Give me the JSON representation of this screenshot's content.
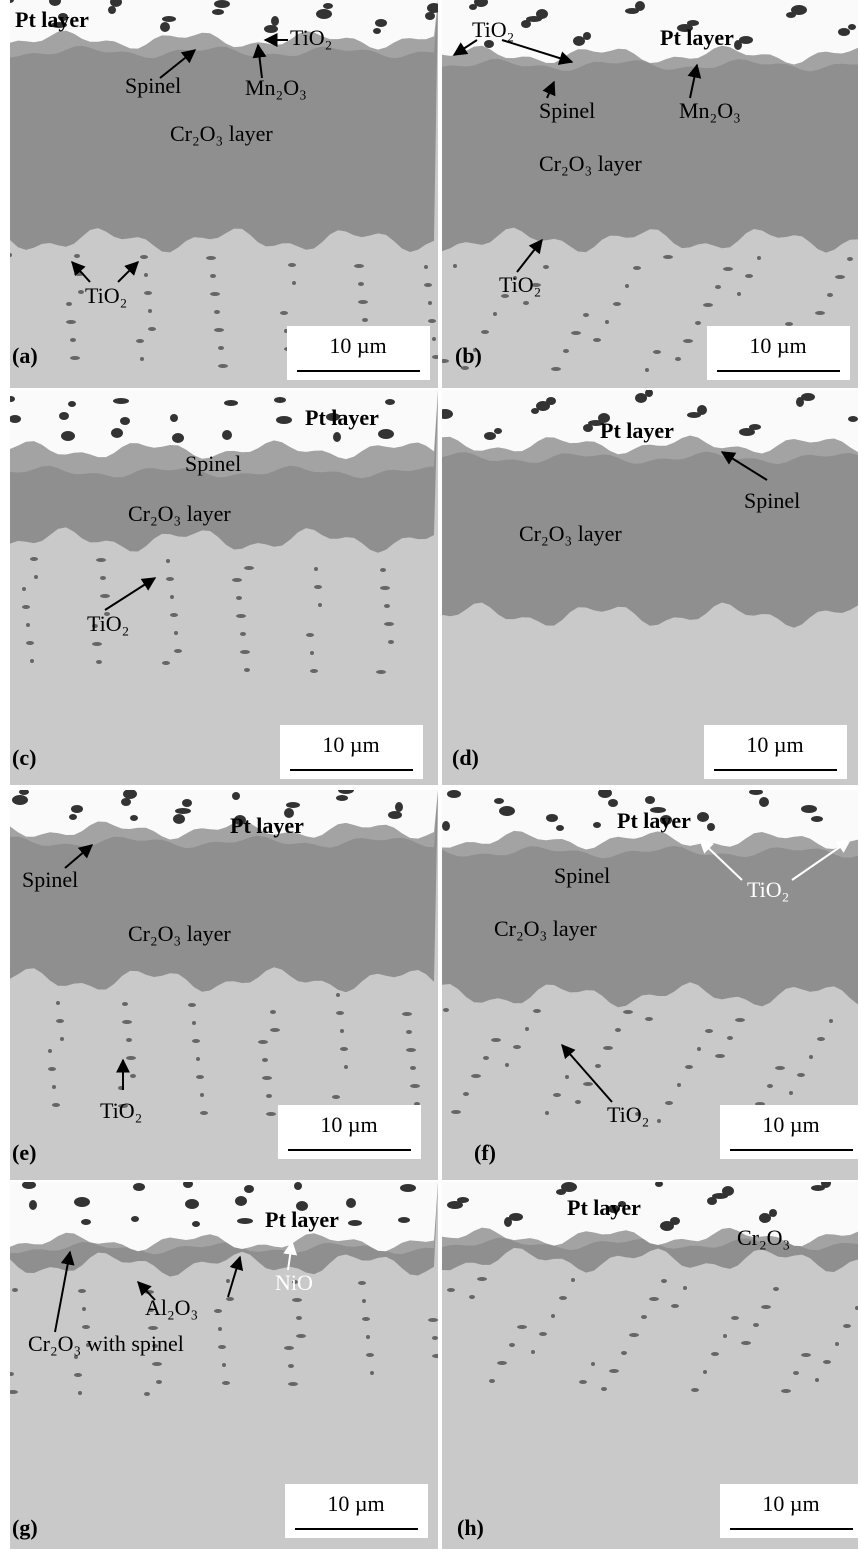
{
  "panels": [
    {
      "label": "(a)",
      "scale_bar": "10 µm",
      "annotations": [
        "Pt layer",
        "TiO₂",
        "Spinel",
        "Mn₂O₃",
        "Cr₂O₃ layer",
        "TiO₂"
      ]
    },
    {
      "label": "(b)",
      "scale_bar": "10 µm",
      "annotations": [
        "TiO₂",
        "Pt layer",
        "Spinel",
        "Mn₂O₃",
        "Cr₂O₃ layer",
        "TiO₂"
      ]
    },
    {
      "label": "(c)",
      "scale_bar": "10 µm",
      "annotations": [
        "Pt layer",
        "Spinel",
        "Cr₂O₃ layer",
        "TiO₂"
      ]
    },
    {
      "label": "(d)",
      "scale_bar": "10 µm",
      "annotations": [
        "Pt layer",
        "Spinel",
        "Cr₂O₃ layer"
      ]
    },
    {
      "label": "(e)",
      "scale_bar": "10 µm",
      "annotations": [
        "Pt layer",
        "Spinel",
        "Cr₂O₃ layer",
        "TiO₂"
      ]
    },
    {
      "label": "(f)",
      "scale_bar": "10 µm",
      "annotations": [
        "Pt layer",
        "Spinel",
        "TiO₂",
        "Cr₂O₃ layer",
        "TiO₂"
      ]
    },
    {
      "label": "(g)",
      "scale_bar": "10 µm",
      "annotations": [
        "Pt layer",
        "NiO",
        "Al₂O₃",
        "Cr₂O₃ with spinel"
      ]
    },
    {
      "label": "(h)",
      "scale_bar": "10 µm",
      "annotations": [
        "Pt layer",
        "Cr₂O₃"
      ]
    }
  ]
}
